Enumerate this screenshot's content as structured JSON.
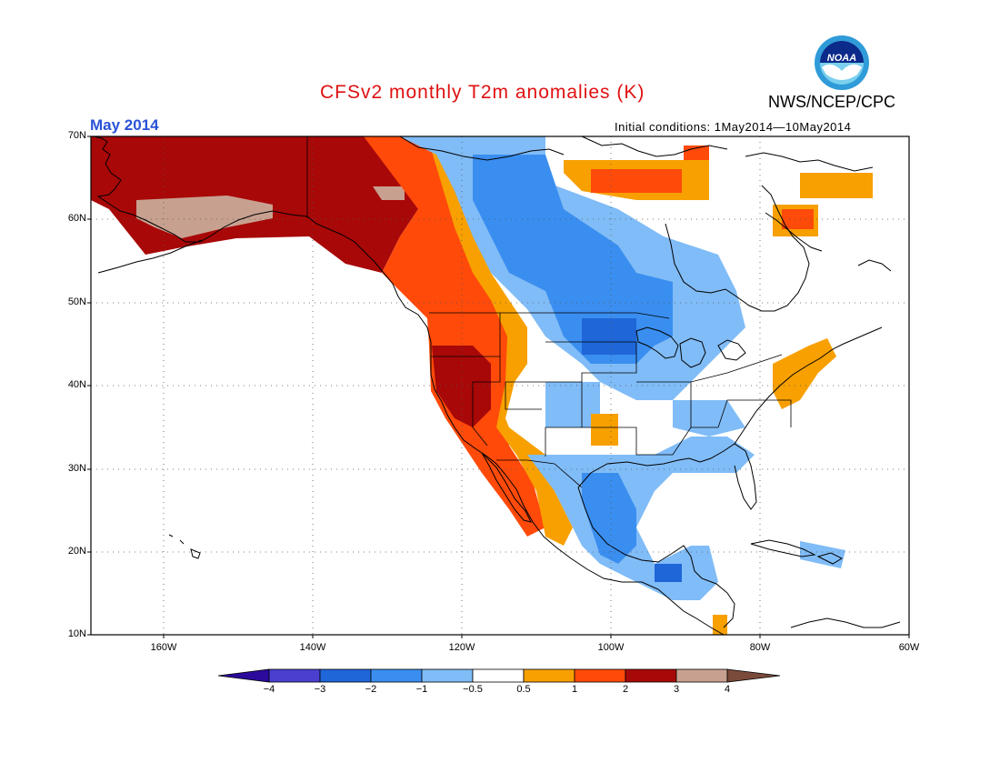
{
  "title": "CFSv2 monthly T2m anomalies (K)",
  "organization": "NWS/NCEP/CPC",
  "logo_text": "NOAA",
  "month_label": "May 2014",
  "initial_conditions": "Initial conditions: 1May2014—10May2014",
  "lat_labels": [
    "70N",
    "60N",
    "50N",
    "40N",
    "30N",
    "20N",
    "10N"
  ],
  "lon_labels": [
    "160W",
    "140W",
    "120W",
    "100W",
    "80W",
    "60W"
  ],
  "colorbar": {
    "labels": [
      "−4",
      "−3",
      "−2",
      "−1",
      "−0.5",
      "0.5",
      "1",
      "2",
      "3",
      "4"
    ],
    "bins": [
      {
        "range": "< -4",
        "color": "#2b0a9c"
      },
      {
        "range": "-4 to -3",
        "color": "#4a3fcf"
      },
      {
        "range": "-3 to -2",
        "color": "#1f66d8"
      },
      {
        "range": "-2 to -1",
        "color": "#3a8ef0"
      },
      {
        "range": "-1 to -0.5",
        "color": "#80bcf7"
      },
      {
        "range": "-0.5 to 0.5",
        "color": "#ffffff"
      },
      {
        "range": "0.5 to 1",
        "color": "#f7a000"
      },
      {
        "range": "1 to 2",
        "color": "#ff4a0a"
      },
      {
        "range": "2 to 3",
        "color": "#a80808"
      },
      {
        "range": "3 to 4",
        "color": "#c8a090"
      },
      {
        "range": "> 4",
        "color": "#7a4a3a"
      }
    ]
  },
  "colors": {
    "title": "#e01010",
    "month": "#2a52d8",
    "light_blue": "#80bcf7",
    "mid_blue": "#3a8ef0",
    "dark_blue": "#1f66d8",
    "orange": "#f7a000",
    "red_orange": "#ff4a0a",
    "dark_red": "#a80808",
    "tan": "#c8a090"
  }
}
